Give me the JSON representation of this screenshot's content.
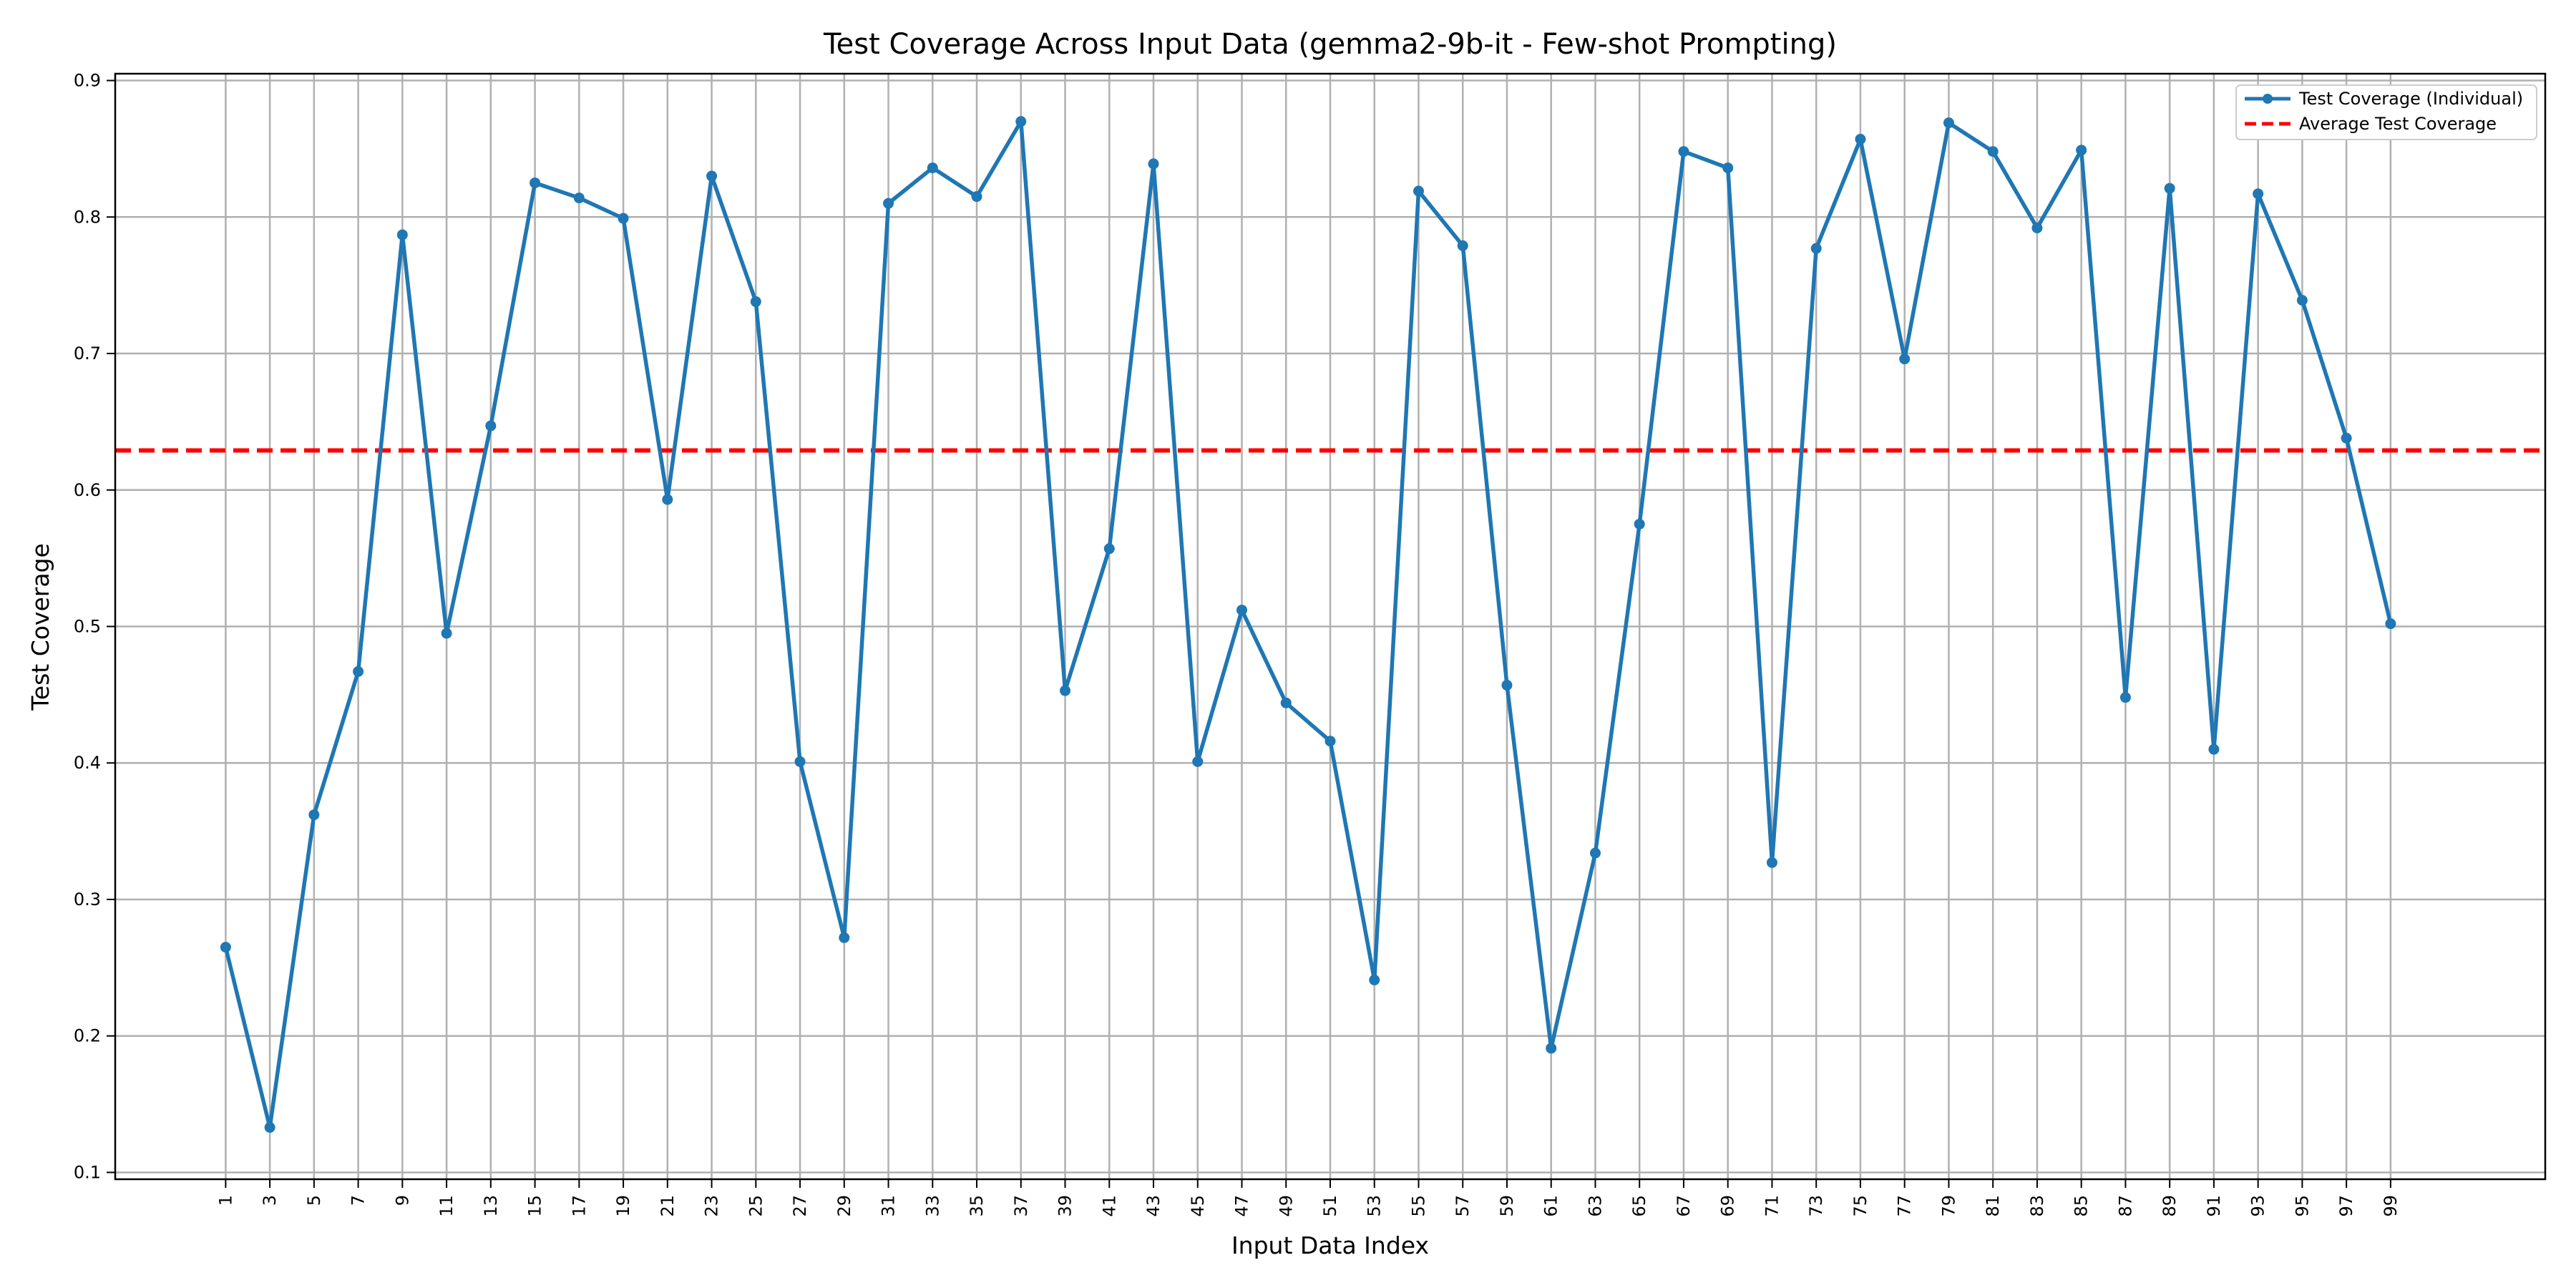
{
  "chart_data": {
    "type": "line",
    "title": "Test Coverage Across Input Data (gemma2-9b-it - Few-shot Prompting)",
    "xlabel": "Input Data Index",
    "ylabel": "Test Coverage",
    "xlim": [
      -4,
      106
    ],
    "ylim": [
      0.095,
      0.905
    ],
    "x_ticks": [
      1,
      3,
      5,
      7,
      9,
      11,
      13,
      15,
      17,
      19,
      21,
      23,
      25,
      27,
      29,
      31,
      33,
      35,
      37,
      39,
      41,
      43,
      45,
      47,
      49,
      51,
      53,
      55,
      57,
      59,
      61,
      63,
      65,
      67,
      69,
      71,
      73,
      75,
      77,
      79,
      81,
      83,
      85,
      87,
      89,
      91,
      93,
      95,
      97,
      99
    ],
    "y_ticks": [
      "0.1",
      "0.2",
      "0.3",
      "0.4",
      "0.5",
      "0.6",
      "0.7",
      "0.8",
      "0.9"
    ],
    "grid": true,
    "legend_position": "top-right",
    "series": [
      {
        "name": "Test Coverage (Individual)",
        "color": "#1f77b4",
        "style": "solid-with-markers",
        "x": [
          1,
          3,
          5,
          7,
          9,
          11,
          13,
          15,
          17,
          19,
          21,
          23,
          25,
          27,
          29,
          31,
          33,
          35,
          37,
          39,
          41,
          43,
          45,
          47,
          49,
          51,
          53,
          55,
          57,
          59,
          61,
          63,
          65,
          67,
          69,
          71,
          73,
          75,
          77,
          79,
          81,
          83,
          85,
          87,
          89,
          91,
          93,
          95,
          97,
          99
        ],
        "values": [
          0.265,
          0.133,
          0.362,
          0.467,
          0.787,
          0.495,
          0.647,
          0.825,
          0.814,
          0.799,
          0.593,
          0.83,
          0.738,
          0.401,
          0.272,
          0.81,
          0.836,
          0.815,
          0.87,
          0.453,
          0.557,
          0.839,
          0.401,
          0.512,
          0.444,
          0.416,
          0.241,
          0.819,
          0.779,
          0.457,
          0.191,
          0.334,
          0.575,
          0.848,
          0.836,
          0.327,
          0.777,
          0.857,
          0.696,
          0.869,
          0.848,
          0.792,
          0.849,
          0.448,
          0.821,
          0.41,
          0.817,
          0.739,
          0.638,
          0.502
        ]
      },
      {
        "name": "Average Test Coverage",
        "color": "#ff0000",
        "style": "dashed-horizontal",
        "value": 0.629
      }
    ]
  }
}
